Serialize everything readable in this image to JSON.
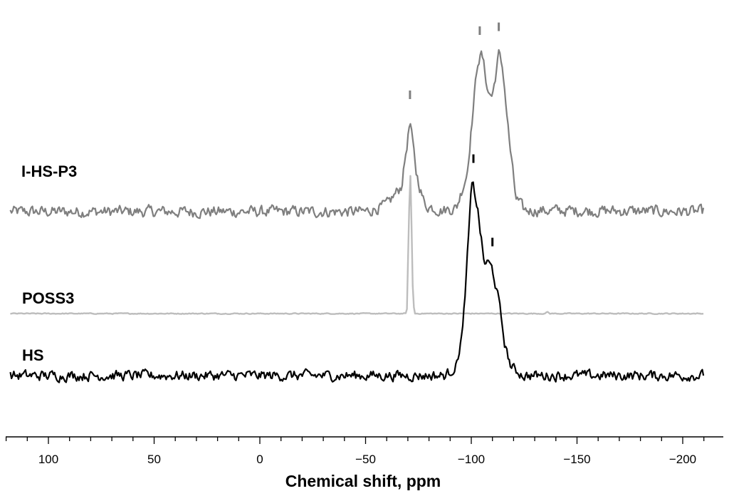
{
  "chart_data": {
    "type": "line",
    "title": "",
    "xlabel": "Chemical shift, ppm",
    "ylabel": "",
    "xlim": [
      120,
      -212
    ],
    "x_reversed": true,
    "y_axis_shown": false,
    "grid": false,
    "legend": "none",
    "x_ticks": [
      {
        "value": 100,
        "label": "100"
      },
      {
        "value": 50,
        "label": "50"
      },
      {
        "value": 0,
        "label": "0"
      },
      {
        "value": -50,
        "label": "−50"
      },
      {
        "value": -100,
        "label": "−100"
      },
      {
        "value": -150,
        "label": "−150"
      },
      {
        "value": -200,
        "label": "−200"
      }
    ],
    "series": [
      {
        "name": "I-HS-P3",
        "color": "#7f7f7f",
        "baseline": 0.55,
        "noise": 0.05,
        "points": [
          [
            118,
            0.55
          ],
          [
            -50,
            0.55
          ],
          [
            -60,
            0.6
          ],
          [
            -67,
            0.75
          ],
          [
            -71,
            1.25
          ],
          [
            -74,
            0.85
          ],
          [
            -78,
            0.6
          ],
          [
            -86,
            0.56
          ],
          [
            -93,
            0.58
          ],
          [
            -98,
            0.85
          ],
          [
            -103,
            1.72
          ],
          [
            -105,
            1.78
          ],
          [
            -108,
            1.48
          ],
          [
            -110,
            1.45
          ],
          [
            -113,
            1.78
          ],
          [
            -115,
            1.65
          ],
          [
            -118,
            1.1
          ],
          [
            -121,
            0.66
          ],
          [
            -125,
            0.56
          ],
          [
            -210,
            0.55
          ]
        ],
        "peak_markers": [
          -71,
          -104,
          -113
        ]
      },
      {
        "name": "POSS3",
        "color": "#bdbdbd",
        "baseline": 0.0,
        "noise": 0.004,
        "points": [
          [
            118,
            0.0
          ],
          [
            5,
            0.0
          ],
          [
            6,
            0.025
          ],
          [
            7,
            0.0
          ],
          [
            -69.5,
            0.0
          ],
          [
            -70.6,
            0.8
          ],
          [
            -71.3,
            1.12
          ],
          [
            -72.2,
            0.25
          ],
          [
            -73,
            0.0
          ],
          [
            -135,
            0.0
          ],
          [
            -136,
            0.015
          ],
          [
            -137,
            0.0
          ],
          [
            -210,
            0.0
          ]
        ],
        "peak_markers": []
      },
      {
        "name": "HS",
        "color": "#000000",
        "baseline": -0.58,
        "noise": 0.045,
        "points": [
          [
            118,
            -0.58
          ],
          [
            -88,
            -0.58
          ],
          [
            -93,
            -0.5
          ],
          [
            -96,
            -0.22
          ],
          [
            -98,
            0.3
          ],
          [
            -100,
            0.87
          ],
          [
            -101,
            0.9
          ],
          [
            -103,
            0.72
          ],
          [
            -106,
            0.3
          ],
          [
            -108,
            0.3
          ],
          [
            -110,
            0.25
          ],
          [
            -113,
            0.0
          ],
          [
            -116,
            -0.35
          ],
          [
            -119,
            -0.52
          ],
          [
            -125,
            -0.58
          ],
          [
            -210,
            -0.58
          ]
        ],
        "peak_markers": [
          -101,
          -110
        ]
      }
    ]
  }
}
